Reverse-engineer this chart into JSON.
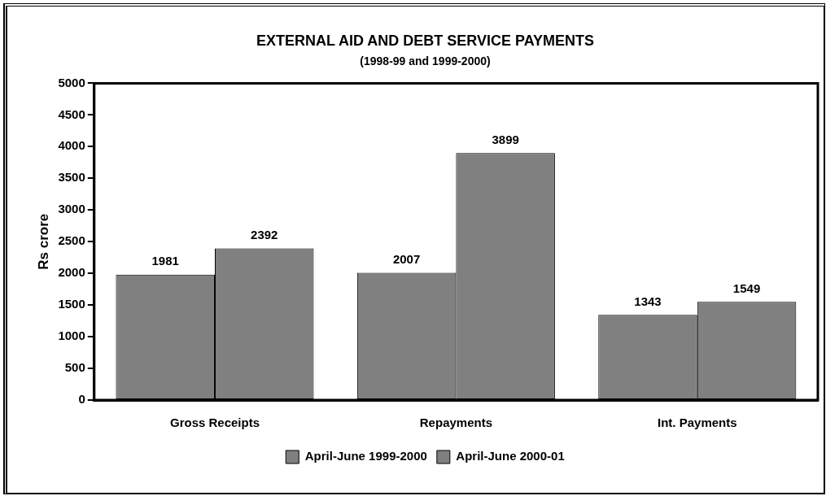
{
  "chart_data": {
    "type": "bar",
    "title": "EXTERNAL AID AND DEBT SERVICE PAYMENTS",
    "subtitle": "(1998-99 and 1999-2000)",
    "ylabel": "Rs crore",
    "categories": [
      "Gross Receipts",
      "Repayments",
      "Int. Payments"
    ],
    "series": [
      {
        "name": "April-June 1999-2000",
        "color": "#808080",
        "values": [
          1981,
          2007,
          1343
        ]
      },
      {
        "name": "April-June 2000-01",
        "color": "#808080",
        "values": [
          2392,
          3899,
          1549
        ]
      }
    ],
    "ylim": [
      0,
      5000
    ],
    "yticks": [
      0,
      500,
      1000,
      1500,
      2000,
      2500,
      3000,
      3500,
      4000,
      4500,
      5000
    ],
    "grid": false,
    "legend": "bottom",
    "data_labels": true
  }
}
